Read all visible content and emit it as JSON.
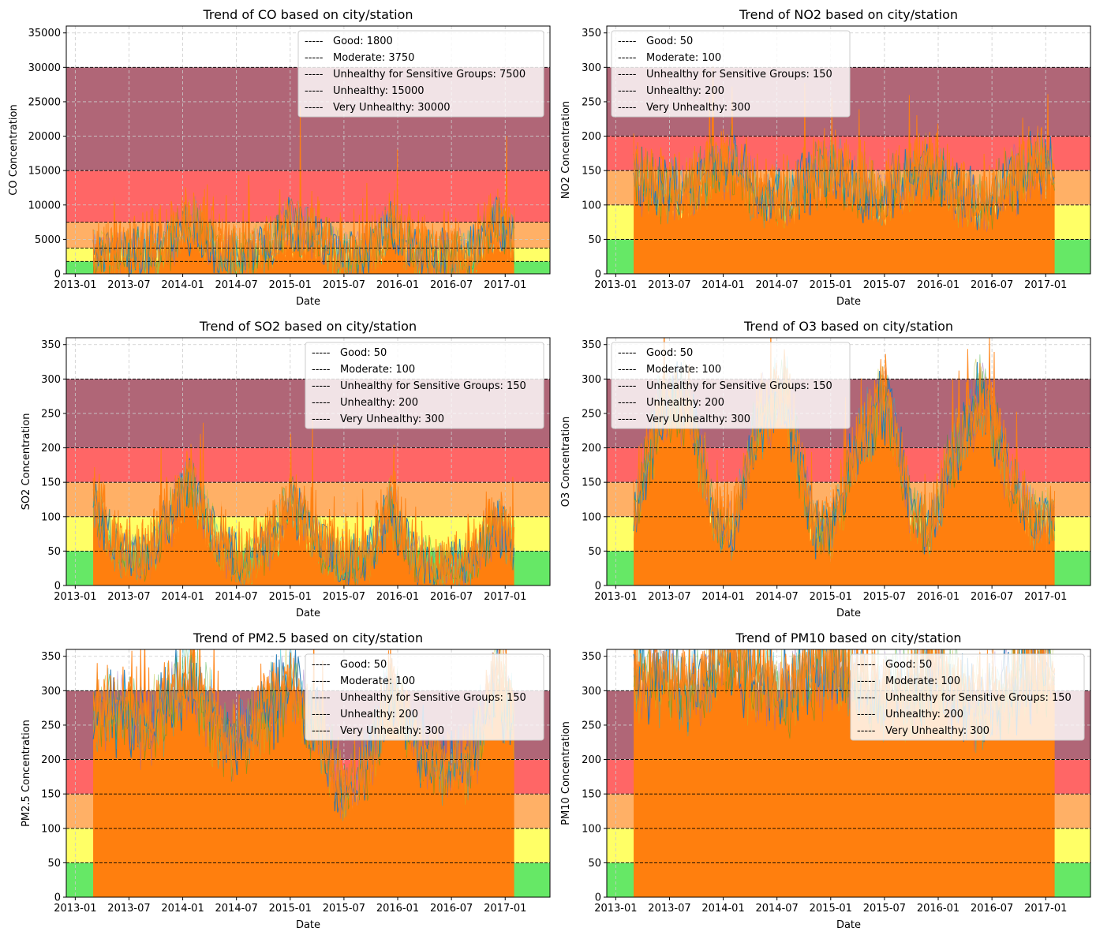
{
  "colors": {
    "good": "#66e866",
    "moderate": "#ffff66",
    "usg": "#ffb066",
    "unhealthy": "#ff6666",
    "very_unhealthy": "#b06677",
    "main_series": "#ff7f0e",
    "series_palette": [
      "#1f77b4",
      "#ff7f0e",
      "#2ca02c",
      "#d62728",
      "#9467bd",
      "#8c564b",
      "#e377c2",
      "#7f7f7f",
      "#bcbd22",
      "#17becf"
    ],
    "threshold_line": "#000000",
    "grid": "#cccccc"
  },
  "x_ticks": [
    "2013-01",
    "2013-07",
    "2014-01",
    "2014-07",
    "2015-01",
    "2015-07",
    "2016-01",
    "2016-07",
    "2017-01"
  ],
  "chart_data": [
    {
      "type": "line",
      "pollutant": "CO",
      "title": "Trend of CO based on city/station",
      "xlabel": "Date",
      "ylabel": "CO Concentration",
      "xlim": [
        "2012-12-01",
        "2017-06-01"
      ],
      "ylim": [
        0,
        36000
      ],
      "y_ticks": [
        0,
        5000,
        10000,
        15000,
        20000,
        25000,
        30000,
        35000
      ],
      "grid": true,
      "legend_position": "top-right",
      "legend_prefix": "-----",
      "thresholds": [
        {
          "label": "Good: 1800",
          "value": 1800
        },
        {
          "label": "Moderate: 3750",
          "value": 3750
        },
        {
          "label": "Unhealthy for Sensitive Groups: 7500",
          "value": 7500
        },
        {
          "label": "Unhealthy: 15000",
          "value": 15000
        },
        {
          "label": "Very Unhealthy: 30000",
          "value": 30000
        }
      ],
      "series_x": [
        "2013-03",
        "2013-06",
        "2013-09",
        "2013-12",
        "2014-02",
        "2014-05",
        "2014-08",
        "2014-11",
        "2015-01",
        "2015-04",
        "2015-07",
        "2015-10",
        "2015-12",
        "2016-03",
        "2016-06",
        "2016-09",
        "2016-12",
        "2017-02"
      ],
      "series_y": [
        3000,
        2800,
        2900,
        5000,
        7500,
        3200,
        2500,
        4800,
        7000,
        5500,
        2600,
        3500,
        7200,
        3300,
        2700,
        3000,
        7800,
        5000
      ]
    },
    {
      "type": "line",
      "pollutant": "NO2",
      "title": "Trend of NO2 based on city/station",
      "xlabel": "Date",
      "ylabel": "NO2 Concentration",
      "xlim": [
        "2012-12-01",
        "2017-06-01"
      ],
      "ylim": [
        0,
        360
      ],
      "y_ticks": [
        0,
        50,
        100,
        150,
        200,
        250,
        300,
        350
      ],
      "grid": true,
      "legend_position": "top-left",
      "legend_prefix": "-----",
      "thresholds": [
        {
          "label": "Good: 50",
          "value": 50
        },
        {
          "label": "Moderate: 100",
          "value": 100
        },
        {
          "label": "Unhealthy for Sensitive Groups: 150",
          "value": 150
        },
        {
          "label": "Unhealthy: 200",
          "value": 200
        },
        {
          "label": "Very Unhealthy: 300",
          "value": 300
        }
      ],
      "series_x": [
        "2013-03",
        "2013-06",
        "2013-09",
        "2013-12",
        "2014-02",
        "2014-05",
        "2014-08",
        "2014-11",
        "2015-01",
        "2015-04",
        "2015-07",
        "2015-10",
        "2015-12",
        "2016-03",
        "2016-06",
        "2016-09",
        "2016-12",
        "2017-02"
      ],
      "series_y": [
        140,
        120,
        125,
        150,
        160,
        115,
        110,
        140,
        150,
        130,
        110,
        145,
        155,
        115,
        105,
        130,
        160,
        140
      ]
    },
    {
      "type": "line",
      "pollutant": "SO2",
      "title": "Trend of SO2 based on city/station",
      "xlabel": "Date",
      "ylabel": "SO2 Concentration",
      "xlim": [
        "2012-12-01",
        "2017-06-01"
      ],
      "ylim": [
        0,
        360
      ],
      "y_ticks": [
        0,
        50,
        100,
        150,
        200,
        250,
        300,
        350
      ],
      "grid": true,
      "legend_position": "top-right",
      "legend_prefix": "-----",
      "thresholds": [
        {
          "label": "Good: 50",
          "value": 50
        },
        {
          "label": "Moderate: 100",
          "value": 100
        },
        {
          "label": "Unhealthy for Sensitive Groups: 150",
          "value": 150
        },
        {
          "label": "Unhealthy: 200",
          "value": 200
        },
        {
          "label": "Very Unhealthy: 300",
          "value": 300
        }
      ],
      "series_x": [
        "2013-03",
        "2013-06",
        "2013-09",
        "2013-12",
        "2014-02",
        "2014-05",
        "2014-08",
        "2014-11",
        "2015-01",
        "2015-04",
        "2015-07",
        "2015-10",
        "2015-12",
        "2016-03",
        "2016-06",
        "2016-09",
        "2016-12",
        "2017-02"
      ],
      "series_y": [
        120,
        50,
        40,
        110,
        150,
        60,
        30,
        70,
        120,
        70,
        30,
        50,
        110,
        40,
        25,
        30,
        90,
        60
      ]
    },
    {
      "type": "line",
      "pollutant": "O3",
      "title": "Trend of O3 based on city/station",
      "xlabel": "Date",
      "ylabel": "O3 Concentration",
      "xlim": [
        "2012-12-01",
        "2017-06-01"
      ],
      "ylim": [
        0,
        360
      ],
      "y_ticks": [
        0,
        50,
        100,
        150,
        200,
        250,
        300,
        350
      ],
      "grid": true,
      "legend_position": "top-left",
      "legend_prefix": "-----",
      "thresholds": [
        {
          "label": "Good: 50",
          "value": 50
        },
        {
          "label": "Moderate: 100",
          "value": 100
        },
        {
          "label": "Unhealthy for Sensitive Groups: 150",
          "value": 150
        },
        {
          "label": "Unhealthy: 200",
          "value": 200
        },
        {
          "label": "Very Unhealthy: 300",
          "value": 300
        }
      ],
      "series_x": [
        "2013-03",
        "2013-06",
        "2013-09",
        "2013-12",
        "2014-02",
        "2014-05",
        "2014-08",
        "2014-11",
        "2015-01",
        "2015-04",
        "2015-07",
        "2015-10",
        "2015-12",
        "2016-03",
        "2016-06",
        "2016-09",
        "2016-12",
        "2017-02"
      ],
      "series_y": [
        100,
        250,
        270,
        100,
        80,
        240,
        280,
        90,
        75,
        200,
        280,
        110,
        80,
        200,
        280,
        150,
        90,
        100
      ]
    },
    {
      "type": "line",
      "pollutant": "PM2.5",
      "title": "Trend of PM2.5 based on city/station",
      "xlabel": "Date",
      "ylabel": "PM2.5 Concentration",
      "xlim": [
        "2012-12-01",
        "2017-06-01"
      ],
      "ylim": [
        0,
        360
      ],
      "y_ticks": [
        0,
        50,
        100,
        150,
        200,
        250,
        300,
        350
      ],
      "grid": true,
      "legend_position": "top-right",
      "legend_prefix": "-----",
      "thresholds": [
        {
          "label": "Good: 50",
          "value": 50
        },
        {
          "label": "Moderate: 100",
          "value": 100
        },
        {
          "label": "Unhealthy for Sensitive Groups: 150",
          "value": 150
        },
        {
          "label": "Unhealthy: 200",
          "value": 200
        },
        {
          "label": "Very Unhealthy: 300",
          "value": 300
        }
      ],
      "series_x": [
        "2013-03",
        "2013-06",
        "2013-09",
        "2013-12",
        "2014-02",
        "2014-05",
        "2014-08",
        "2014-11",
        "2015-01",
        "2015-04",
        "2015-07",
        "2015-10",
        "2015-12",
        "2016-03",
        "2016-06",
        "2016-09",
        "2016-12",
        "2017-02"
      ],
      "series_y": [
        260,
        280,
        250,
        300,
        320,
        240,
        230,
        280,
        300,
        240,
        150,
        200,
        300,
        230,
        180,
        200,
        320,
        260
      ]
    },
    {
      "type": "line",
      "pollutant": "PM10",
      "title": "Trend of PM10 based on city/station",
      "xlabel": "Date",
      "ylabel": "PM10 Concentration",
      "xlim": [
        "2012-12-01",
        "2017-06-01"
      ],
      "ylim": [
        0,
        360
      ],
      "y_ticks": [
        0,
        50,
        100,
        150,
        200,
        250,
        300,
        350
      ],
      "grid": true,
      "legend_position": "top-right",
      "legend_prefix": "-----",
      "thresholds": [
        {
          "label": "Good: 50",
          "value": 50
        },
        {
          "label": "Moderate: 100",
          "value": 100
        },
        {
          "label": "Unhealthy for Sensitive Groups: 150",
          "value": 150
        },
        {
          "label": "Unhealthy: 200",
          "value": 200
        },
        {
          "label": "Very Unhealthy: 300",
          "value": 300
        }
      ],
      "series_x": [
        "2013-03",
        "2013-06",
        "2013-09",
        "2013-12",
        "2014-02",
        "2014-05",
        "2014-08",
        "2014-11",
        "2015-01",
        "2015-04",
        "2015-07",
        "2015-10",
        "2015-12",
        "2016-03",
        "2016-06",
        "2016-09",
        "2016-12",
        "2017-02"
      ],
      "series_y": [
        320,
        330,
        300,
        340,
        350,
        320,
        300,
        330,
        340,
        320,
        290,
        310,
        340,
        300,
        270,
        300,
        340,
        320
      ]
    }
  ]
}
